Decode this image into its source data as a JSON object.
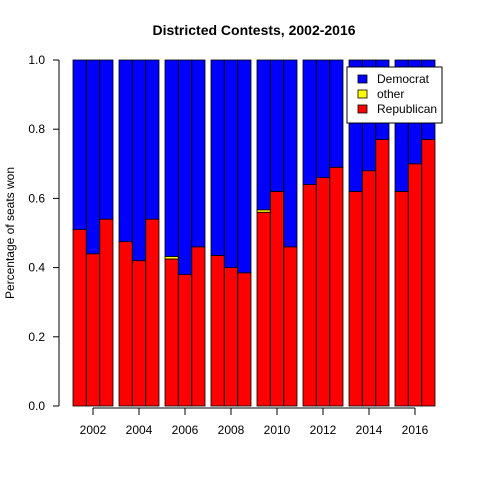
{
  "chart_data": {
    "type": "bar",
    "title": "Districted Contests, 2002-2016",
    "xlabel": "",
    "ylabel": "Percentage of seats won",
    "ylim": [
      0,
      1
    ],
    "yticks": [
      "0.0",
      "0.2",
      "0.4",
      "0.6",
      "0.8",
      "1.0"
    ],
    "stacked": true,
    "groups": [
      "2002",
      "2004",
      "2006",
      "2008",
      "2010",
      "2012",
      "2014",
      "2016"
    ],
    "bars_per_group": 3,
    "legend_placement": "top-right",
    "legend": [
      "Democrat",
      "other",
      "Republican"
    ],
    "colors": {
      "Democrat": "#0000ff",
      "other": "#ffff00",
      "Republican": "#ff0000"
    },
    "series": [
      {
        "name": "Republican",
        "values": [
          0.51,
          0.44,
          0.54,
          0.475,
          0.42,
          0.54,
          0.425,
          0.38,
          0.46,
          0.435,
          0.4,
          0.385,
          0.56,
          0.62,
          0.46,
          0.64,
          0.66,
          0.69,
          0.62,
          0.68,
          0.77,
          0.62,
          0.7,
          0.77
        ]
      },
      {
        "name": "other",
        "values": [
          0,
          0,
          0,
          0,
          0,
          0,
          0.007,
          0,
          0,
          0,
          0,
          0,
          0.007,
          0,
          0,
          0,
          0,
          0,
          0,
          0,
          0,
          0,
          0,
          0
        ]
      },
      {
        "name": "Democrat",
        "values": [
          0.49,
          0.56,
          0.46,
          0.525,
          0.58,
          0.46,
          0.568,
          0.62,
          0.54,
          0.565,
          0.6,
          0.615,
          0.433,
          0.38,
          0.54,
          0.36,
          0.34,
          0.31,
          0.38,
          0.32,
          0.23,
          0.38,
          0.3,
          0.23
        ]
      }
    ]
  }
}
